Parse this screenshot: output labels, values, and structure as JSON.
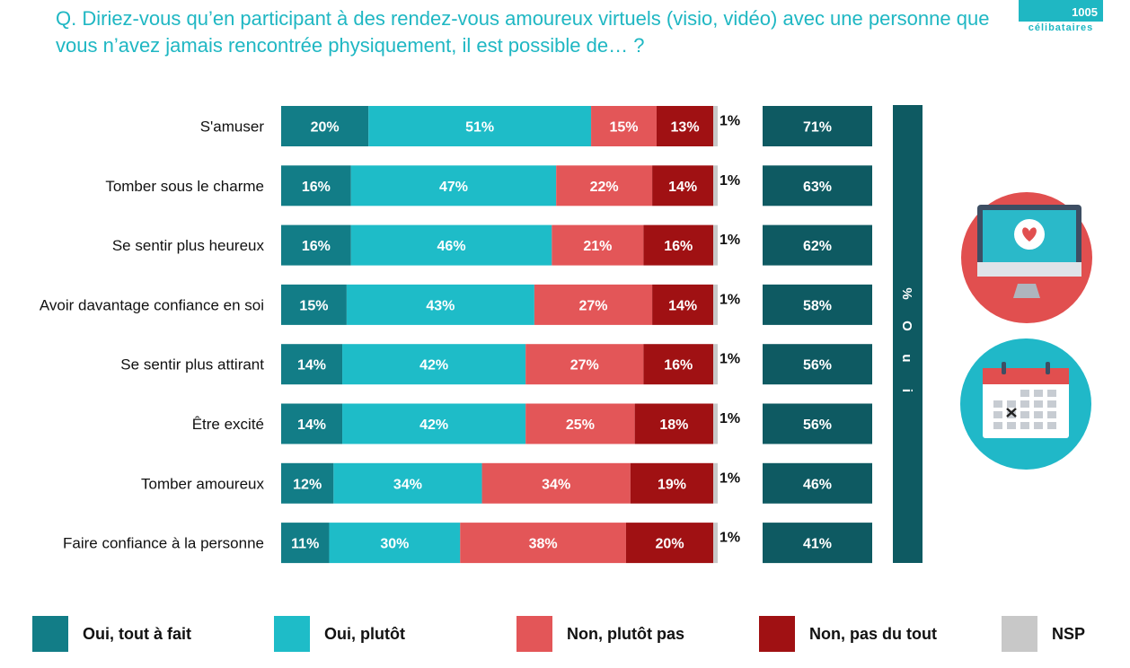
{
  "question": "Q. Diriez-vous qu’en participant à des rendez-vous amoureux virtuels (visio, vidéo) avec une personne que vous n’avez jamais rencontrée physiquement, il est possible de… ?",
  "logo": {
    "number": "1005",
    "label": "célibataires"
  },
  "total_column_label": "% Oui",
  "colors": {
    "oui_tout_a_fait": "#127d87",
    "oui_plutot": "#1ebcc8",
    "non_plutot_pas": "#e35658",
    "non_pas_du_tout": "#a01113",
    "nsp": "#c8c8c8",
    "total": "#0e5a62"
  },
  "legend": [
    {
      "label": "Oui, tout à fait",
      "color": "#127d87"
    },
    {
      "label": "Oui, plutôt",
      "color": "#1ebcc8"
    },
    {
      "label": "Non, plutôt pas",
      "color": "#e35658"
    },
    {
      "label": "Non, pas du tout",
      "color": "#a01113"
    },
    {
      "label": "NSP",
      "color": "#c8c8c8"
    }
  ],
  "icons": [
    "computer-heart-icon",
    "calendar-icon"
  ],
  "chart_data": {
    "type": "bar",
    "stacked": true,
    "orientation": "horizontal",
    "unit": "%",
    "categories": [
      "S'amuser",
      "Tomber sous le charme",
      "Se sentir plus heureux",
      "Avoir davantage confiance en soi",
      "Se sentir plus attirant",
      "Être excité",
      "Tomber amoureux",
      "Faire confiance à la personne"
    ],
    "series": [
      {
        "name": "Oui, tout à fait",
        "values": [
          20,
          16,
          16,
          15,
          14,
          14,
          12,
          11
        ]
      },
      {
        "name": "Oui, plutôt",
        "values": [
          51,
          47,
          46,
          43,
          42,
          42,
          34,
          30
        ]
      },
      {
        "name": "Non, plutôt pas",
        "values": [
          15,
          22,
          21,
          27,
          27,
          25,
          34,
          38
        ]
      },
      {
        "name": "Non, pas du tout",
        "values": [
          13,
          14,
          16,
          14,
          16,
          18,
          19,
          20
        ]
      },
      {
        "name": "NSP",
        "values": [
          1,
          1,
          1,
          1,
          1,
          1,
          1,
          1
        ]
      }
    ],
    "total_oui": [
      71,
      63,
      62,
      58,
      56,
      56,
      46,
      41
    ],
    "legend_position": "bottom"
  }
}
